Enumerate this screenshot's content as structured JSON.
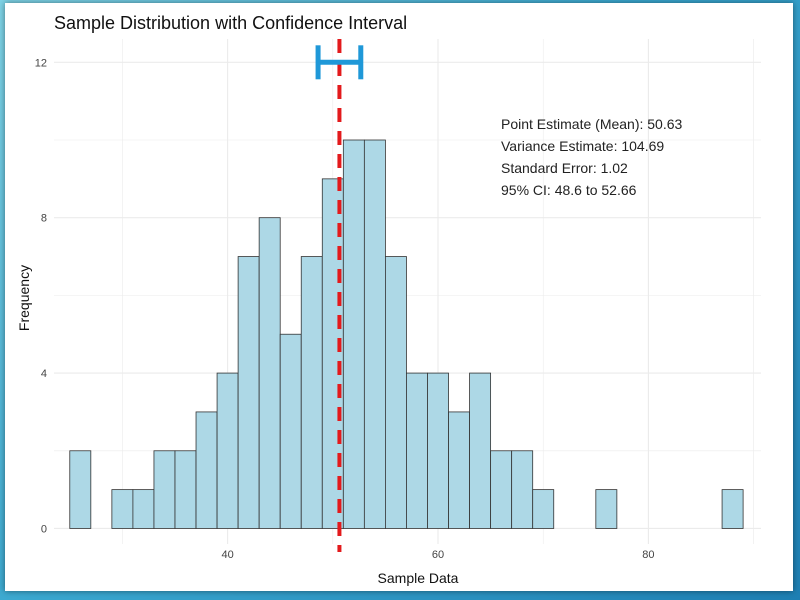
{
  "chart_data": {
    "type": "bar",
    "subtype": "histogram",
    "title": "Sample Distribution with Confidence Interval",
    "xlabel": "Sample Data",
    "ylabel": "Frequency",
    "xlim": [
      23.5,
      90.7
    ],
    "ylim": [
      -0.4,
      12.6
    ],
    "x_ticks": [
      40,
      60,
      80
    ],
    "y_ticks": [
      0,
      4,
      8,
      12
    ],
    "x_ticks_minor": [
      30,
      50,
      70,
      90
    ],
    "y_ticks_minor": [
      2,
      6,
      10
    ],
    "grid": true,
    "bin_width": 2,
    "bins": [
      {
        "x0": 25,
        "x1": 27,
        "count": 2
      },
      {
        "x0": 27,
        "x1": 29,
        "count": 0
      },
      {
        "x0": 29,
        "x1": 31,
        "count": 1
      },
      {
        "x0": 31,
        "x1": 33,
        "count": 1
      },
      {
        "x0": 33,
        "x1": 35,
        "count": 2
      },
      {
        "x0": 35,
        "x1": 37,
        "count": 2
      },
      {
        "x0": 37,
        "x1": 39,
        "count": 3
      },
      {
        "x0": 39,
        "x1": 41,
        "count": 4
      },
      {
        "x0": 41,
        "x1": 43,
        "count": 7
      },
      {
        "x0": 43,
        "x1": 45,
        "count": 8
      },
      {
        "x0": 45,
        "x1": 47,
        "count": 5
      },
      {
        "x0": 47,
        "x1": 49,
        "count": 7
      },
      {
        "x0": 49,
        "x1": 51,
        "count": 9
      },
      {
        "x0": 51,
        "x1": 53,
        "count": 10
      },
      {
        "x0": 53,
        "x1": 55,
        "count": 10
      },
      {
        "x0": 55,
        "x1": 57,
        "count": 7
      },
      {
        "x0": 57,
        "x1": 59,
        "count": 4
      },
      {
        "x0": 59,
        "x1": 61,
        "count": 4
      },
      {
        "x0": 61,
        "x1": 63,
        "count": 3
      },
      {
        "x0": 63,
        "x1": 65,
        "count": 4
      },
      {
        "x0": 65,
        "x1": 67,
        "count": 2
      },
      {
        "x0": 67,
        "x1": 69,
        "count": 2
      },
      {
        "x0": 69,
        "x1": 71,
        "count": 1
      },
      {
        "x0": 75,
        "x1": 77,
        "count": 1
      },
      {
        "x0": 87,
        "x1": 89,
        "count": 1
      }
    ],
    "mean": 50.63,
    "ci_lower": 48.6,
    "ci_upper": 52.66,
    "ci_y": 12,
    "annotations": [
      "Point Estimate (Mean): 50.63",
      "Variance Estimate: 104.69",
      "Standard Error: 1.02",
      "95% CI: 48.6 to 52.66"
    ],
    "colors": {
      "bar_fill": "#add8e6",
      "bar_stroke": "#333333",
      "mean_line": "#e31a1c",
      "ci_bar": "#1f98d8",
      "grid": "#ebebeb"
    }
  }
}
